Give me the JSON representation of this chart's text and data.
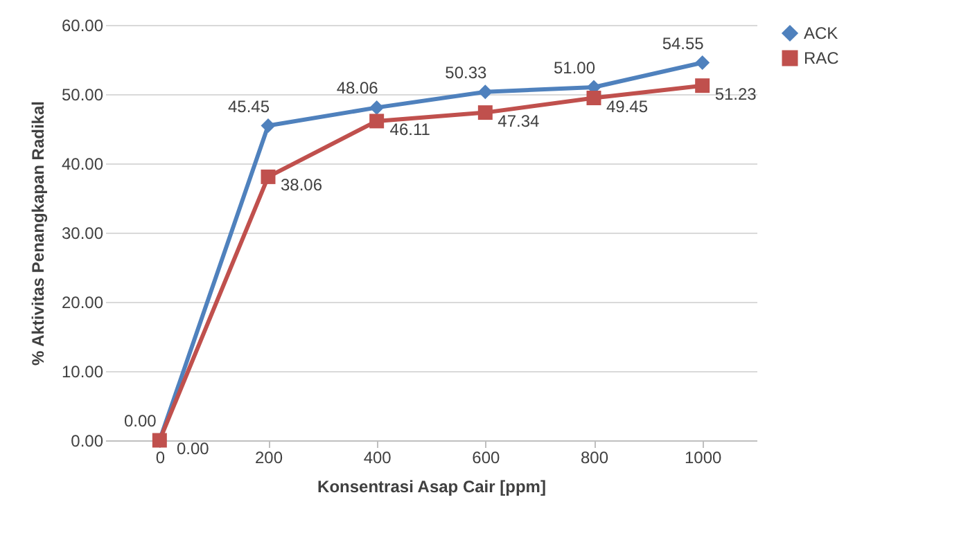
{
  "chart_data": {
    "type": "line",
    "xlabel": "Konsentrasi Asap Cair [ppm]",
    "ylabel": "% Aktivitas Penangkapan Radikal",
    "categories": [
      "0",
      "200",
      "400",
      "600",
      "800",
      "1000"
    ],
    "series": [
      {
        "name": "ACK",
        "color": "#4f81bd",
        "marker": "diamond",
        "values": [
          0,
          45.45,
          48.06,
          50.33,
          51.0,
          54.55
        ],
        "value_labels": [
          "0.00",
          "45.45",
          "48.06",
          "50.33",
          "51.00",
          "54.55"
        ]
      },
      {
        "name": "RAC",
        "color": "#c0504d",
        "marker": "square",
        "values": [
          0,
          38.06,
          46.11,
          47.34,
          49.45,
          51.23
        ],
        "value_labels": [
          "0.00",
          "38.06",
          "46.11",
          "47.34",
          "49.45",
          "51.23"
        ]
      }
    ],
    "ylim": [
      0,
      60
    ],
    "yticks": [
      {
        "value": 0,
        "label": "0.00"
      },
      {
        "value": 10,
        "label": "10.00"
      },
      {
        "value": 20,
        "label": "20.00"
      },
      {
        "value": 30,
        "label": "30.00"
      },
      {
        "value": 40,
        "label": "40.00"
      },
      {
        "value": 50,
        "label": "50.00"
      },
      {
        "value": 60,
        "label": "60.00"
      }
    ],
    "grid": "y",
    "legend": "right",
    "line_style": "solid"
  }
}
